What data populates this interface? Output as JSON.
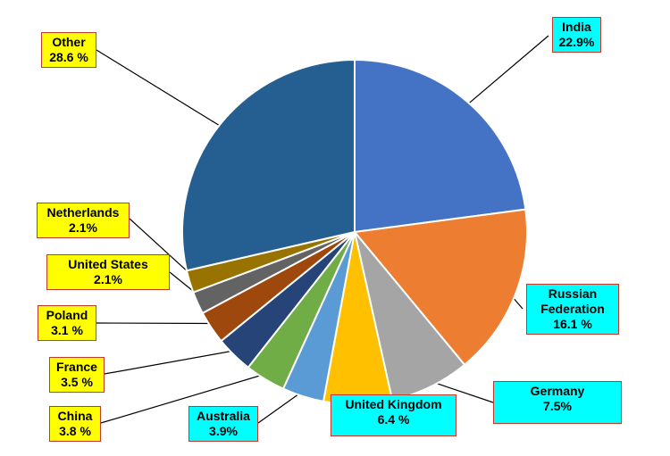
{
  "chart_data": {
    "type": "pie",
    "unit": "%",
    "slices": [
      {
        "name": "India",
        "value": 22.9,
        "label": "22.9%",
        "color": "#4472c4",
        "box": "cyan"
      },
      {
        "name": "Russian Federation",
        "name_lines": [
          "Russian",
          "Federation"
        ],
        "value": 16.1,
        "label": "16.1 %",
        "color": "#ed7d31",
        "box": "cyan"
      },
      {
        "name": "Germany",
        "value": 7.5,
        "label": "7.5%",
        "color": "#a5a5a5",
        "box": "cyan"
      },
      {
        "name": "United Kingdom",
        "value": 6.4,
        "label": "6.4 %",
        "color": "#ffc000",
        "box": "cyan"
      },
      {
        "name": "Australia",
        "value": 3.9,
        "label": "3.9%",
        "color": "#5b9bd5",
        "box": "cyan"
      },
      {
        "name": "China",
        "value": 3.8,
        "label": "3.8 %",
        "color": "#70ad47",
        "box": "yellow"
      },
      {
        "name": "France",
        "value": 3.5,
        "label": "3.5 %",
        "color": "#264478",
        "box": "yellow"
      },
      {
        "name": "Poland",
        "value": 3.1,
        "label": "3.1 %",
        "color": "#9e480e",
        "box": "yellow"
      },
      {
        "name": "United States",
        "value": 2.1,
        "label": "2.1%",
        "color": "#636363",
        "box": "yellow"
      },
      {
        "name": "Netherlands",
        "value": 2.1,
        "label": "2.1%",
        "color": "#997300",
        "box": "yellow"
      },
      {
        "name": "Other",
        "value": 28.6,
        "label": "28.6 %",
        "color": "#255e91",
        "box": "yellow"
      }
    ]
  }
}
